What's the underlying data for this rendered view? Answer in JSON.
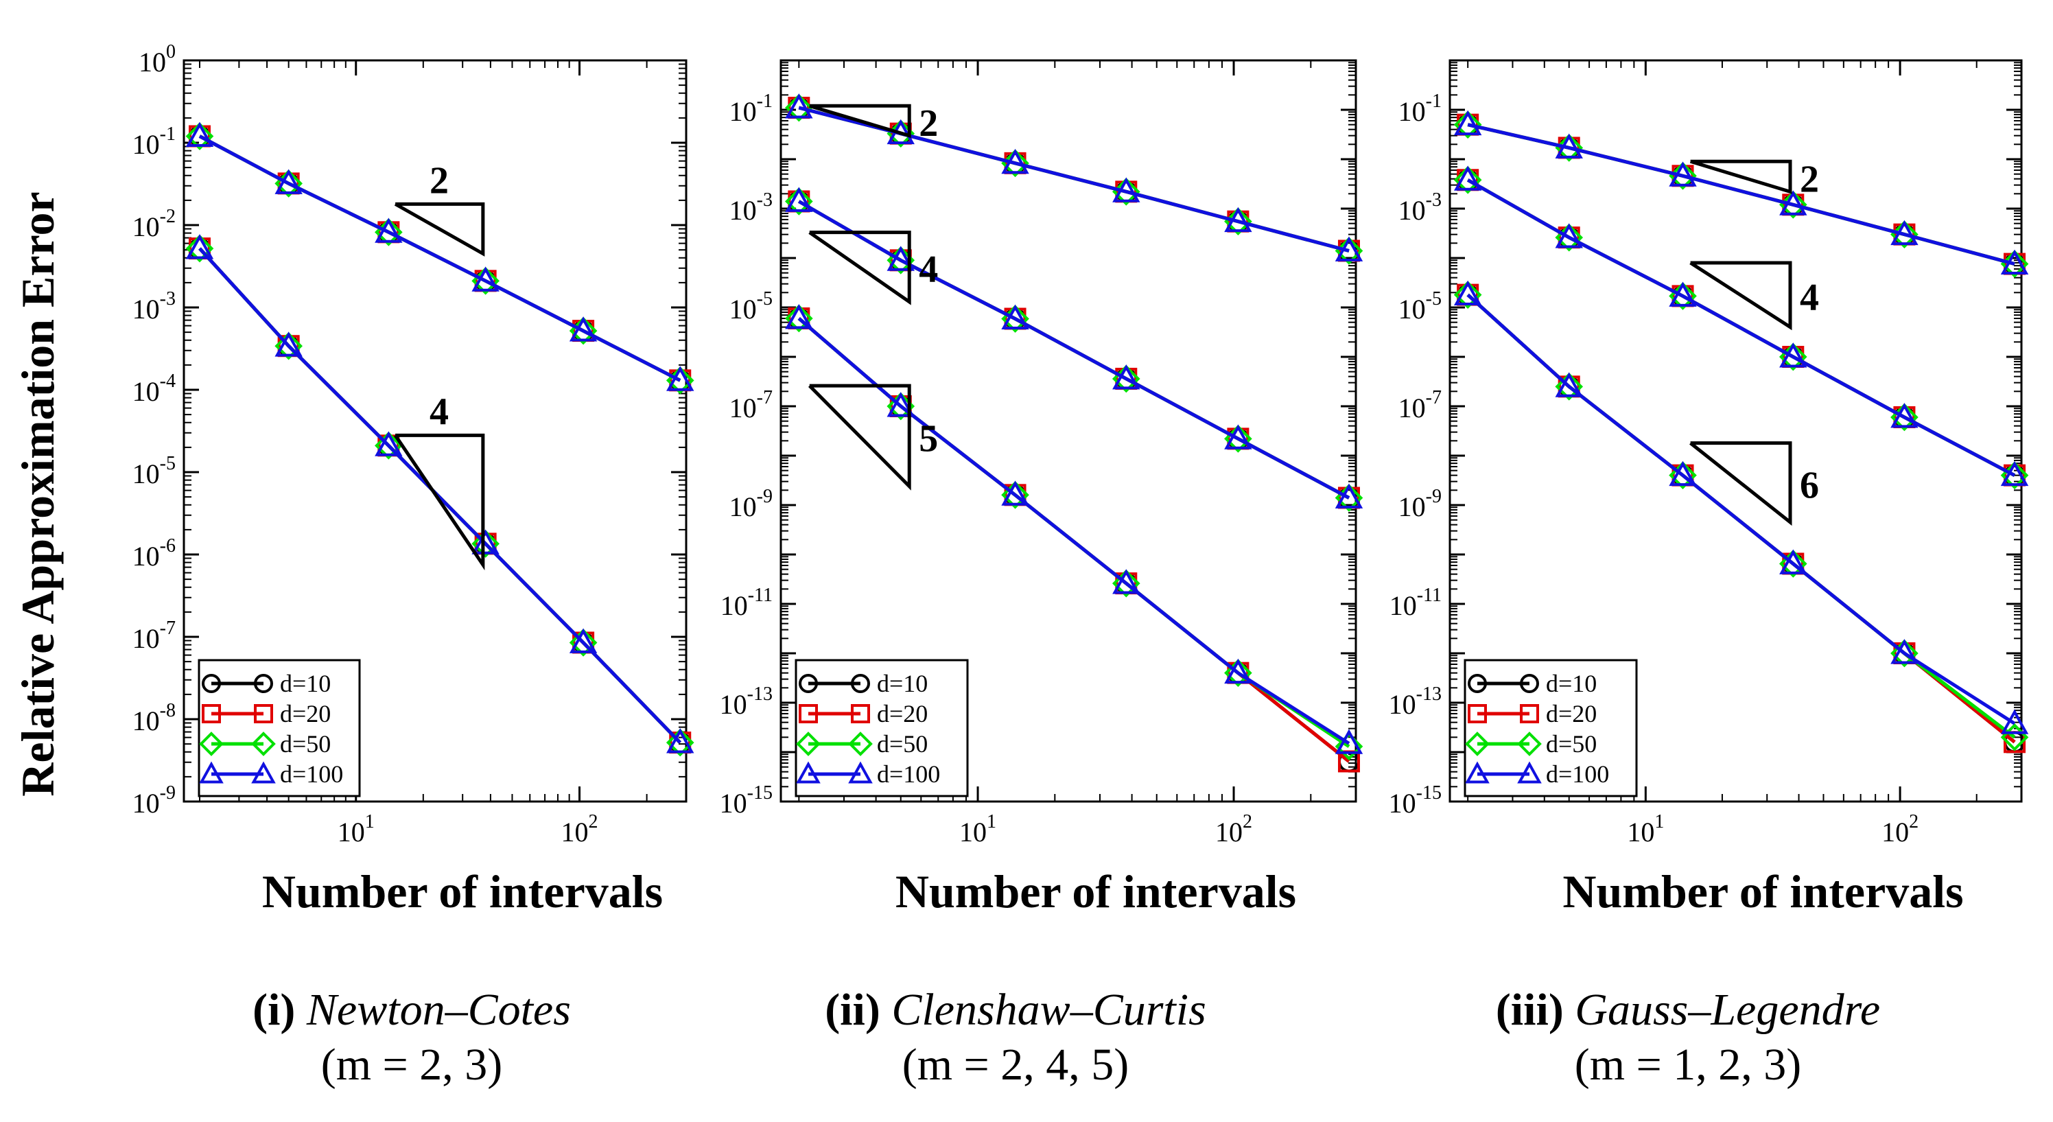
{
  "figure": {
    "y_axis_label": "Relative Approximation Error",
    "x_axis_label": "Number of intervals"
  },
  "captions": [
    {
      "label": "(i)",
      "name": "Newton–Cotes",
      "params": "(m = 2, 3)"
    },
    {
      "label": "(ii)",
      "name": "Clenshaw–Curtis",
      "params": "(m = 2, 4, 5)"
    },
    {
      "label": "(iii)",
      "name": "Gauss–Legendre",
      "params": "(m = 1, 2, 3)"
    }
  ],
  "colors": {
    "d=10": "#000000",
    "d=20": "#e00000",
    "d=50": "#00e000",
    "d=100": "#1010e0"
  },
  "chart_data": [
    {
      "type": "line",
      "title": "(i) Newton–Cotes (m = 2, 3)",
      "xscale": "log",
      "yscale": "log",
      "xlim": [
        1.7,
        300
      ],
      "ylim": [
        1e-09,
        1
      ],
      "ylim_exp": [
        -9,
        0
      ],
      "yticks_exp": [
        0,
        -1,
        -2,
        -3,
        -4,
        -5,
        -6,
        -7,
        -8,
        -9
      ],
      "xticks_exp": [
        1,
        2
      ],
      "xlabel": "Number of intervals",
      "ylabel": "Relative Approximation Error",
      "legend": [
        "d=10",
        "d=20",
        "d=50",
        "d=100"
      ],
      "legend_position": "bottom-left",
      "x": [
        2,
        5,
        14,
        38,
        104,
        282
      ],
      "groups": [
        {
          "m": 2,
          "series": [
            {
              "name": "d=10",
              "values": [
                0.12,
                0.032,
                0.0082,
                0.0021,
                0.00052,
                0.00013
              ]
            },
            {
              "name": "d=20",
              "values": [
                0.12,
                0.032,
                0.0082,
                0.0021,
                0.00052,
                0.00013
              ]
            },
            {
              "name": "d=50",
              "values": [
                0.12,
                0.032,
                0.0082,
                0.0021,
                0.00052,
                0.00013
              ]
            },
            {
              "name": "d=100",
              "values": [
                0.12,
                0.032,
                0.0082,
                0.0021,
                0.00052,
                0.00013
              ]
            }
          ]
        },
        {
          "m": 3,
          "series": [
            {
              "name": "d=10",
              "values": [
                0.0052,
                0.00034,
                2.1e-05,
                1.35e-06,
                8.5e-08,
                5.2e-09
              ]
            },
            {
              "name": "d=20",
              "values": [
                0.0052,
                0.00034,
                2.1e-05,
                1.35e-06,
                8.5e-08,
                5.2e-09
              ]
            },
            {
              "name": "d=50",
              "values": [
                0.0052,
                0.00034,
                2.1e-05,
                1.35e-06,
                8.5e-08,
                5.2e-09
              ]
            },
            {
              "name": "d=100",
              "values": [
                0.0052,
                0.00034,
                2.1e-05,
                1.35e-06,
                8.5e-08,
                5.2e-09
              ]
            }
          ]
        }
      ],
      "slope_triangles": [
        {
          "label": "2",
          "x": [
            15,
            37
          ],
          "y_top": 0.018,
          "y_bottom": 0.0045
        },
        {
          "label": "4",
          "x": [
            15,
            37
          ],
          "y_top": 2.8e-05,
          "y_bottom": 7.5e-07
        }
      ]
    },
    {
      "type": "line",
      "title": "(ii) Clenshaw–Curtis (m = 2, 4, 5)",
      "xscale": "log",
      "yscale": "log",
      "xlim": [
        1.7,
        300
      ],
      "ylim": [
        1e-15,
        1
      ],
      "ylim_exp": [
        -15,
        0
      ],
      "yticks_exp": [
        -1,
        -3,
        -5,
        -7,
        -9,
        -11,
        -13,
        -15
      ],
      "xticks_exp": [
        1,
        2
      ],
      "xlabel": "Number of intervals",
      "ylabel": "",
      "legend": [
        "d=10",
        "d=20",
        "d=50",
        "d=100"
      ],
      "legend_position": "bottom-left",
      "x": [
        2,
        5,
        14,
        38,
        104,
        282
      ],
      "groups": [
        {
          "m": 2,
          "series": [
            {
              "name": "d=10",
              "values": [
                0.11,
                0.033,
                0.0083,
                0.0022,
                0.00055,
                0.00014
              ]
            },
            {
              "name": "d=20",
              "values": [
                0.11,
                0.033,
                0.0083,
                0.0022,
                0.00055,
                0.00014
              ]
            },
            {
              "name": "d=50",
              "values": [
                0.11,
                0.033,
                0.0083,
                0.0022,
                0.00055,
                0.00014
              ]
            },
            {
              "name": "d=100",
              "values": [
                0.11,
                0.033,
                0.0083,
                0.0022,
                0.00055,
                0.00014
              ]
            }
          ]
        },
        {
          "m": 4,
          "series": [
            {
              "name": "d=10",
              "values": [
                0.0014,
                9e-05,
                5.9e-06,
                3.6e-07,
                2.2e-08,
                1.4e-09
              ]
            },
            {
              "name": "d=20",
              "values": [
                0.0014,
                9e-05,
                5.9e-06,
                3.6e-07,
                2.2e-08,
                1.4e-09
              ]
            },
            {
              "name": "d=50",
              "values": [
                0.0014,
                9e-05,
                5.9e-06,
                3.6e-07,
                2.2e-08,
                1.4e-09
              ]
            },
            {
              "name": "d=100",
              "values": [
                0.0014,
                9e-05,
                5.9e-06,
                3.6e-07,
                2.2e-08,
                1.4e-09
              ]
            }
          ]
        },
        {
          "m": 5,
          "series": [
            {
              "name": "d=10",
              "values": [
                6e-06,
                1e-07,
                1.6e-09,
                2.6e-11,
                4e-13,
                6.5e-15
              ]
            },
            {
              "name": "d=20",
              "values": [
                6e-06,
                1e-07,
                1.6e-09,
                2.6e-11,
                4e-13,
                6.5e-15
              ]
            },
            {
              "name": "d=50",
              "values": [
                6e-06,
                1e-07,
                1.6e-09,
                2.6e-11,
                4e-13,
                1.3e-14
              ]
            },
            {
              "name": "d=100",
              "values": [
                6e-06,
                1e-07,
                1.6e-09,
                2.6e-11,
                4e-13,
                1.5e-14
              ]
            }
          ]
        }
      ],
      "slope_triangles": [
        {
          "label": "2",
          "x": [
            2.2,
            5.4
          ],
          "y_top": 0.12,
          "y_bottom": 0.03
        },
        {
          "label": "4",
          "x": [
            2.2,
            5.4
          ],
          "y_top": 0.00033,
          "y_bottom": 1.3e-05
        },
        {
          "label": "5",
          "x": [
            2.2,
            5.4
          ],
          "y_top": 2.6e-07,
          "y_bottom": 2.4e-09
        }
      ]
    },
    {
      "type": "line",
      "title": "(iii) Gauss–Legendre (m = 1, 2, 3)",
      "xscale": "log",
      "yscale": "log",
      "xlim": [
        1.7,
        300
      ],
      "ylim": [
        1e-15,
        1
      ],
      "ylim_exp": [
        -15,
        0
      ],
      "yticks_exp": [
        -1,
        -3,
        -5,
        -7,
        -9,
        -11,
        -13,
        -15
      ],
      "xticks_exp": [
        1,
        2
      ],
      "xlabel": "Number of intervals",
      "ylabel": "",
      "legend": [
        "d=10",
        "d=20",
        "d=50",
        "d=100"
      ],
      "legend_position": "bottom-left",
      "x": [
        2,
        5,
        14,
        38,
        104,
        282
      ],
      "groups": [
        {
          "m": 1,
          "series": [
            {
              "name": "d=10",
              "values": [
                0.05,
                0.017,
                0.0046,
                0.0012,
                0.0003,
                7.6e-05
              ]
            },
            {
              "name": "d=20",
              "values": [
                0.05,
                0.017,
                0.0046,
                0.0012,
                0.0003,
                7.6e-05
              ]
            },
            {
              "name": "d=50",
              "values": [
                0.05,
                0.017,
                0.0046,
                0.0012,
                0.0003,
                7.6e-05
              ]
            },
            {
              "name": "d=100",
              "values": [
                0.05,
                0.017,
                0.0046,
                0.0012,
                0.0003,
                7.6e-05
              ]
            }
          ]
        },
        {
          "m": 2,
          "series": [
            {
              "name": "d=10",
              "values": [
                0.0038,
                0.00026,
                1.7e-05,
                1e-06,
                6e-08,
                4e-09
              ]
            },
            {
              "name": "d=20",
              "values": [
                0.0038,
                0.00026,
                1.7e-05,
                1e-06,
                6e-08,
                4e-09
              ]
            },
            {
              "name": "d=50",
              "values": [
                0.0038,
                0.00026,
                1.7e-05,
                1e-06,
                6e-08,
                4e-09
              ]
            },
            {
              "name": "d=100",
              "values": [
                0.0038,
                0.00026,
                1.7e-05,
                1e-06,
                6e-08,
                4e-09
              ]
            }
          ]
        },
        {
          "m": 3,
          "series": [
            {
              "name": "d=10",
              "values": [
                1.8e-05,
                2.5e-07,
                4e-09,
                6.5e-11,
                1e-12,
                1.6e-14
              ]
            },
            {
              "name": "d=20",
              "values": [
                1.8e-05,
                2.5e-07,
                4e-09,
                6.5e-11,
                1e-12,
                1.6e-14
              ]
            },
            {
              "name": "d=50",
              "values": [
                1.8e-05,
                2.5e-07,
                4e-09,
                6.5e-11,
                1e-12,
                2e-14
              ]
            },
            {
              "name": "d=100",
              "values": [
                1.8e-05,
                2.5e-07,
                4e-09,
                6.5e-11,
                1e-12,
                3.8e-14
              ]
            }
          ]
        }
      ],
      "slope_triangles": [
        {
          "label": "2",
          "x": [
            15,
            37
          ],
          "y_top": 0.009,
          "y_bottom": 0.0022
        },
        {
          "label": "4",
          "x": [
            15,
            37
          ],
          "y_top": 8e-05,
          "y_bottom": 4e-06
        },
        {
          "label": "6",
          "x": [
            15,
            37
          ],
          "y_top": 1.8e-08,
          "y_bottom": 4.5e-10
        }
      ]
    }
  ]
}
